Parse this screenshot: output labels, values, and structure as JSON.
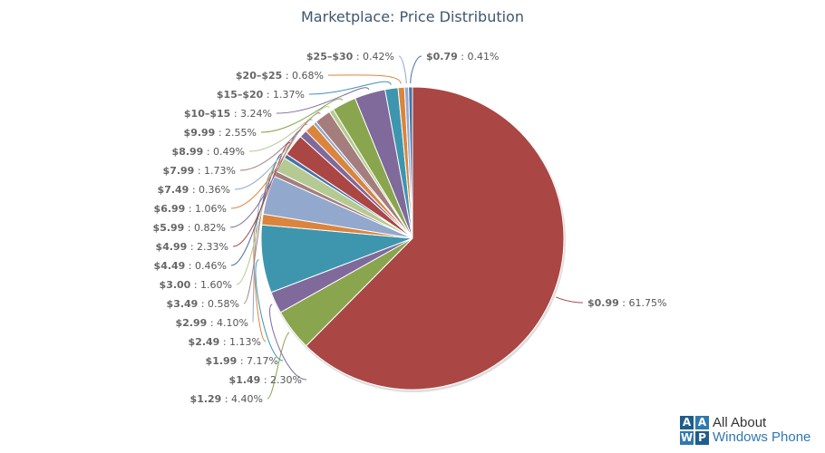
{
  "chart_data": {
    "type": "pie",
    "title": "Marketplace: Price Distribution",
    "slices": [
      {
        "name": "$0.99",
        "value": 61.75,
        "label": "61.75%",
        "color": "#AA4643"
      },
      {
        "name": "$1.29",
        "value": 4.4,
        "label": "4.40%",
        "color": "#89A54E"
      },
      {
        "name": "$1.49",
        "value": 2.3,
        "label": "2.30%",
        "color": "#80699B"
      },
      {
        "name": "$1.99",
        "value": 7.17,
        "label": "7.17%",
        "color": "#3D96AE"
      },
      {
        "name": "$2.49",
        "value": 1.13,
        "label": "1.13%",
        "color": "#DB843D"
      },
      {
        "name": "$2.99",
        "value": 4.1,
        "label": "4.10%",
        "color": "#92A8CD"
      },
      {
        "name": "$3.49",
        "value": 0.58,
        "label": "0.58%",
        "color": "#A47D7C"
      },
      {
        "name": "$3.00",
        "value": 1.6,
        "label": "1.60%",
        "color": "#B5CA92"
      },
      {
        "name": "$4.49",
        "value": 0.46,
        "label": "0.46%",
        "color": "#4572A7"
      },
      {
        "name": "$4.99",
        "value": 2.33,
        "label": "2.33%",
        "color": "#AA4643"
      },
      {
        "name": "$5.99",
        "value": 0.82,
        "label": "0.82%",
        "color": "#80699B"
      },
      {
        "name": "$6.99",
        "value": 1.06,
        "label": "1.06%",
        "color": "#DB843D"
      },
      {
        "name": "$7.49",
        "value": 0.36,
        "label": "0.36%",
        "color": "#92A8CD"
      },
      {
        "name": "$7.99",
        "value": 1.73,
        "label": "1.73%",
        "color": "#A47D7C"
      },
      {
        "name": "$8.99",
        "value": 0.49,
        "label": "0.49%",
        "color": "#B5CA92"
      },
      {
        "name": "$9.99",
        "value": 2.55,
        "label": "2.55%",
        "color": "#89A54E"
      },
      {
        "name": "$10–$15",
        "value": 3.24,
        "label": "3.24%",
        "color": "#80699B"
      },
      {
        "name": "$15–$20",
        "value": 1.37,
        "label": "1.37%",
        "color": "#3D96AE"
      },
      {
        "name": "$20–$25",
        "value": 0.68,
        "label": "0.68%",
        "color": "#DB843D"
      },
      {
        "name": "$25–$30",
        "value": 0.42,
        "label": "0.42%",
        "color": "#92A8CD"
      },
      {
        "name": "$0.79",
        "value": 0.41,
        "label": "0.41%",
        "color": "#4572A7"
      }
    ]
  },
  "logo": {
    "tiles": [
      "A",
      "A",
      "W",
      "P"
    ],
    "line1": "All About",
    "line2": "Windows Phone"
  }
}
